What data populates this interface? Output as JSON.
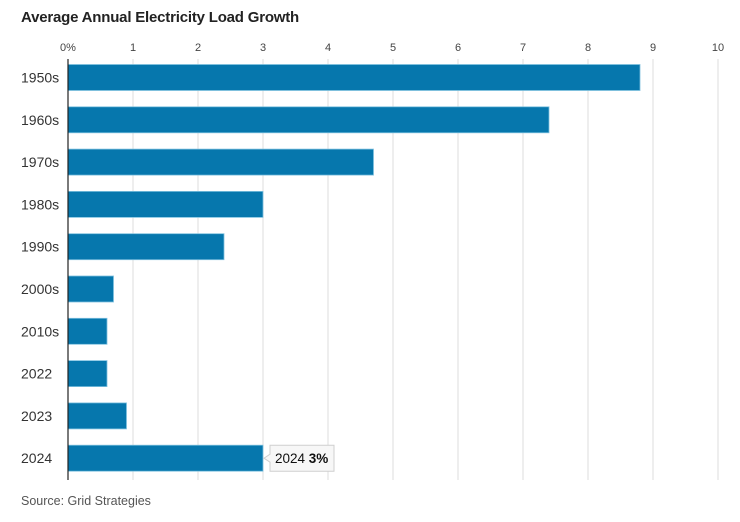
{
  "chart_data": {
    "type": "bar",
    "orientation": "horizontal",
    "title": "Average Annual Electricity Load Growth",
    "source": "Source: Grid Strategies",
    "categories": [
      "1950s",
      "1960s",
      "1970s",
      "1980s",
      "1990s",
      "2000s",
      "2010s",
      "2022",
      "2023",
      "2024"
    ],
    "values": [
      8.8,
      7.4,
      4.7,
      3.0,
      2.4,
      0.7,
      0.6,
      0.6,
      0.9,
      3.0
    ],
    "xlabel": "",
    "ylabel": "",
    "xlim": [
      0,
      10
    ],
    "xticks": [
      0,
      1,
      2,
      3,
      4,
      5,
      6,
      7,
      8,
      9,
      10
    ],
    "xtick_labels": [
      "0%",
      "1",
      "2",
      "3",
      "4",
      "5",
      "6",
      "7",
      "8",
      "9",
      "10"
    ],
    "grid": true,
    "bar_color": "#0677ad",
    "tooltip": {
      "category": "2024",
      "label": "2024",
      "value_text": "3%"
    }
  }
}
